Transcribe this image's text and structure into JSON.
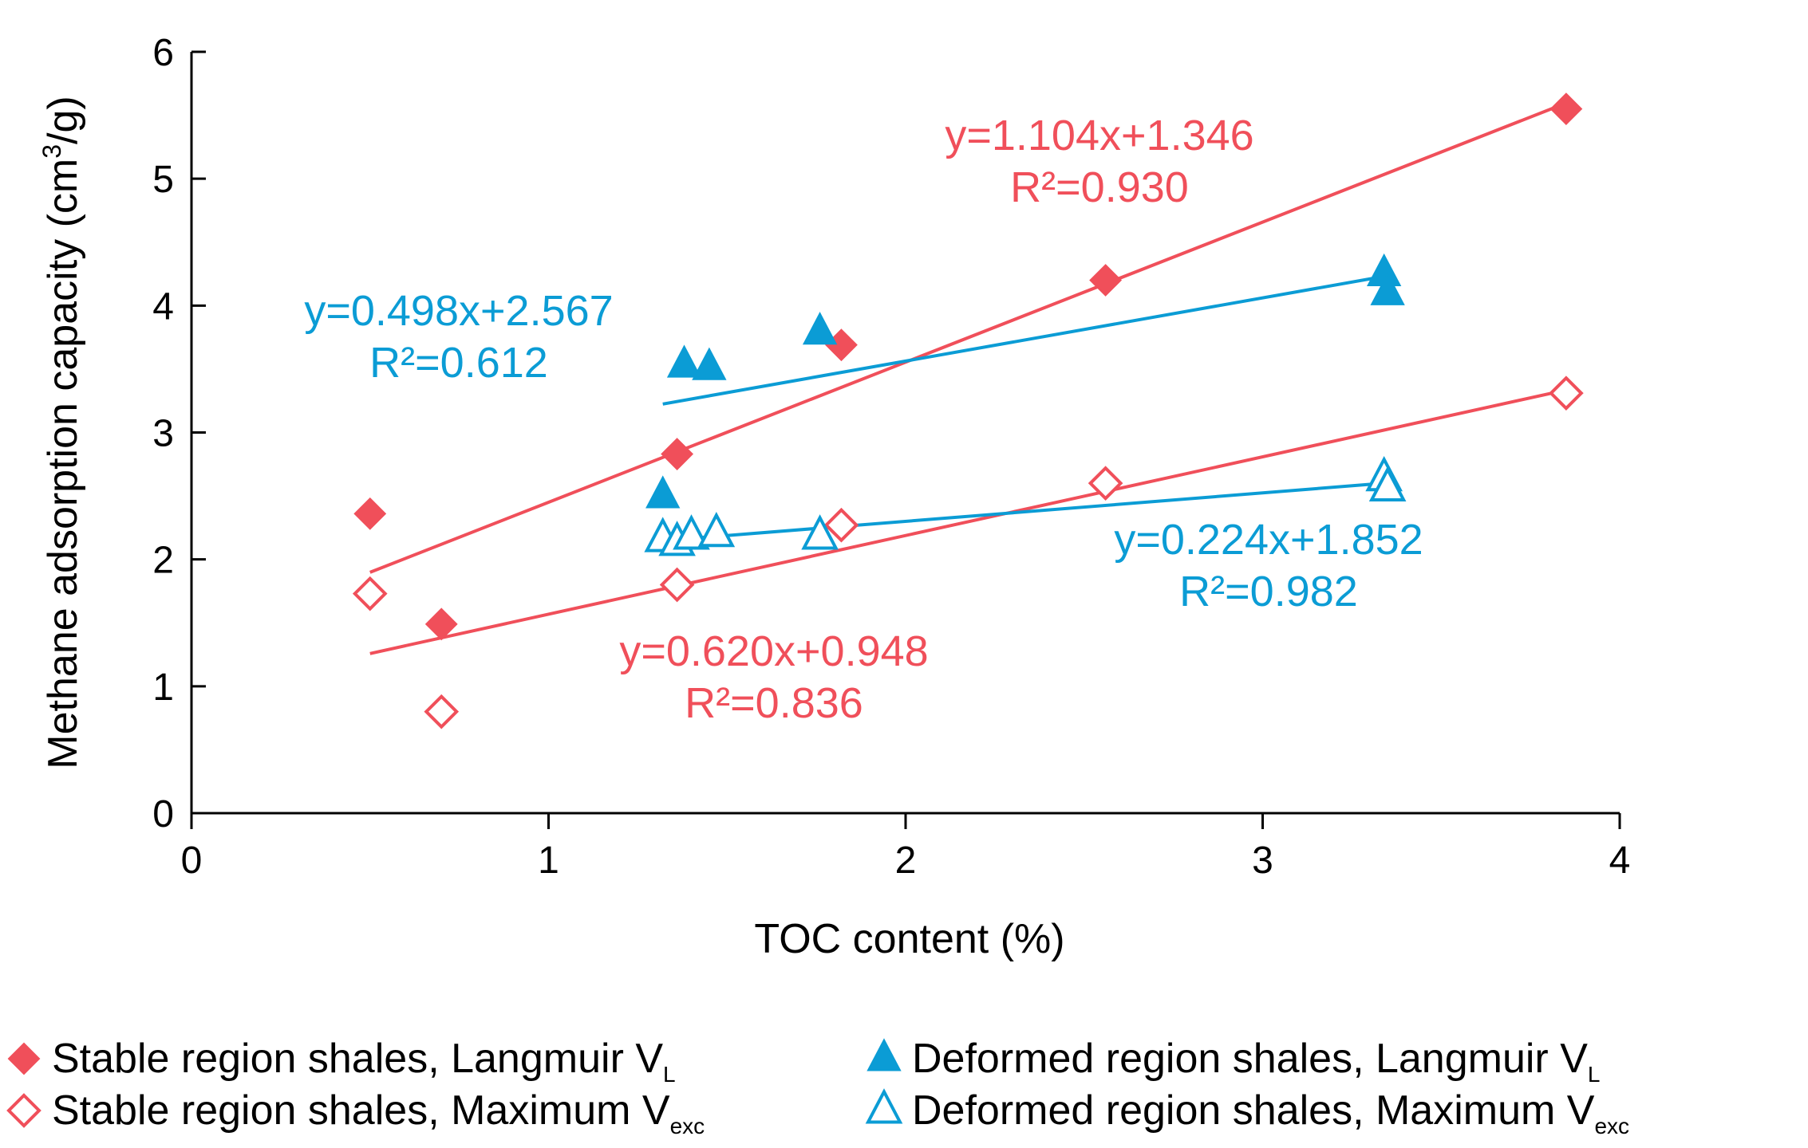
{
  "chart_data": {
    "type": "scatter",
    "title": "",
    "xlabel": "TOC content (%)",
    "ylabel_main": "Methane adsorption capacity (cm",
    "ylabel_sup": "3",
    "ylabel_tail": "/g)",
    "xlim": [
      0,
      4
    ],
    "ylim": [
      0,
      6
    ],
    "xticks": [
      "0",
      "1",
      "2",
      "3",
      "4"
    ],
    "yticks": [
      "0",
      "1",
      "2",
      "3",
      "4",
      "5",
      "6"
    ],
    "colors": {
      "stable": "#f04f5a",
      "deformed": "#0b9cd5"
    },
    "series": [
      {
        "name": "Stable region shales, Langmuir V",
        "sub": "L",
        "marker": "diamond-filled",
        "color_key": "stable",
        "x": [
          0.5,
          0.7,
          1.36,
          1.82,
          2.56,
          3.85
        ],
        "y": [
          2.36,
          1.49,
          2.83,
          3.69,
          4.2,
          5.55
        ],
        "fit": {
          "slope": 1.104,
          "intercept": 1.346,
          "x_range": [
            0.5,
            3.85
          ],
          "equation": "y=1.104x+1.346",
          "r2": "R²=0.930"
        }
      },
      {
        "name": "Stable region shales, Maximum V",
        "sub": "exc",
        "marker": "diamond-open",
        "color_key": "stable",
        "x": [
          0.5,
          0.7,
          1.36,
          1.82,
          2.56,
          3.85
        ],
        "y": [
          1.73,
          0.8,
          1.8,
          2.27,
          2.6,
          3.31
        ],
        "fit": {
          "slope": 0.62,
          "intercept": 0.948,
          "x_range": [
            0.5,
            3.85
          ],
          "equation": "y=0.620x+0.948",
          "r2": "R²=0.836"
        }
      },
      {
        "name": "Deformed region shales, Langmuir V",
        "sub": "L",
        "marker": "triangle-filled",
        "color_key": "deformed",
        "x": [
          1.32,
          1.38,
          1.45,
          1.76,
          3.34,
          3.35
        ],
        "y": [
          2.5,
          3.53,
          3.51,
          3.79,
          4.25,
          4.1
        ],
        "fit": {
          "slope": 0.498,
          "intercept": 2.567,
          "x_range": [
            1.32,
            3.35
          ],
          "equation": "y=0.498x+2.567",
          "r2": "R²=0.612"
        }
      },
      {
        "name": "Deformed region shales, Maximum V",
        "sub": "exc",
        "marker": "triangle-open",
        "color_key": "deformed",
        "x": [
          1.32,
          1.36,
          1.4,
          1.47,
          1.76,
          3.34,
          3.35
        ],
        "y": [
          2.16,
          2.13,
          2.18,
          2.2,
          2.18,
          2.64,
          2.56
        ],
        "fit": {
          "slope": 0.224,
          "intercept": 1.852,
          "x_range": [
            1.4,
            3.35
          ],
          "equation": "y=0.224x+1.852",
          "r2": "R²=0.982"
        }
      }
    ],
    "legend_position": "bottom"
  }
}
